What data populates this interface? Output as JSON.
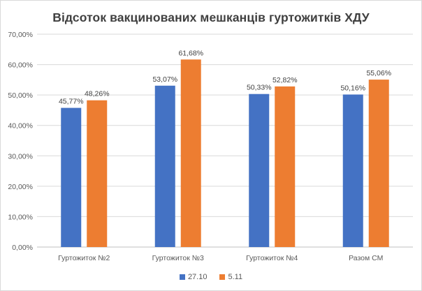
{
  "chart_data": {
    "type": "bar",
    "title": "Відсоток вакцинованих мешканців гуртожитків ХДУ",
    "categories": [
      "Гуртожиток №2",
      "Гуртожиток №3",
      "Гуртожиток №4",
      "Разом СМ"
    ],
    "series": [
      {
        "name": "27.10",
        "color": "#4472c4",
        "values": [
          45.77,
          53.07,
          50.33,
          50.16
        ],
        "labels": [
          "45,77%",
          "53,07%",
          "50,33%",
          "50,16%"
        ]
      },
      {
        "name": "5.11",
        "color": "#ed7d31",
        "values": [
          48.26,
          61.68,
          52.82,
          55.06
        ],
        "labels": [
          "48,26%",
          "61,68%",
          "52,82%",
          "55,06%"
        ]
      }
    ],
    "ylim": [
      0,
      70
    ],
    "yticks": [
      0,
      10,
      20,
      30,
      40,
      50,
      60,
      70
    ],
    "ytick_labels": [
      "0,00%",
      "10,00%",
      "20,00%",
      "30,00%",
      "40,00%",
      "50,00%",
      "60,00%",
      "70,00%"
    ],
    "grid": true,
    "legend_position": "bottom"
  }
}
